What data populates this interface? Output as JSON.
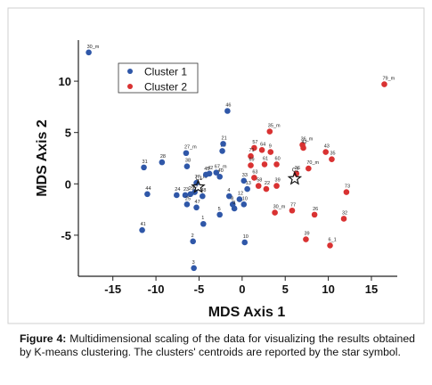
{
  "chart_data": {
    "type": "scatter",
    "xlabel": "MDS Axis 1",
    "ylabel": "MDS Axis 2",
    "xlim": [
      -19,
      18
    ],
    "ylim": [
      -9,
      14
    ],
    "x_ticks": [
      -15,
      -10,
      -5,
      0,
      5,
      10,
      15
    ],
    "y_ticks": [
      -5,
      0,
      5,
      10
    ],
    "x_tick_labels": [
      "-15",
      "-10",
      "-5",
      "0",
      "5",
      "10",
      "15"
    ],
    "y_tick_labels": [
      "-5",
      "0",
      "5",
      "10"
    ],
    "grid": false,
    "legend_position": "top-left",
    "series": [
      {
        "name": "Cluster 1",
        "color": "#2f57a8",
        "points": [
          {
            "x": -17.8,
            "y": 12.8,
            "label": "30_m"
          },
          {
            "x": -11.4,
            "y": 1.6,
            "label": "31"
          },
          {
            "x": -11.0,
            "y": -1.0,
            "label": "44"
          },
          {
            "x": -11.6,
            "y": -4.5,
            "label": "41"
          },
          {
            "x": -9.3,
            "y": 2.1,
            "label": "28"
          },
          {
            "x": -6.5,
            "y": 3.0,
            "label": "27_m"
          },
          {
            "x": -6.4,
            "y": 1.7,
            "label": "38"
          },
          {
            "x": -7.6,
            "y": -1.1,
            "label": "24"
          },
          {
            "x": -6.6,
            "y": -1.1,
            "label": "23"
          },
          {
            "x": -6.0,
            "y": -1.0,
            "label": "29"
          },
          {
            "x": -5.5,
            "y": -0.8,
            "label": "17"
          },
          {
            "x": -5.3,
            "y": 0.1,
            "label": "77_m"
          },
          {
            "x": -4.6,
            "y": -1.2,
            "label": "48"
          },
          {
            "x": -4.2,
            "y": 0.9,
            "label": "45"
          },
          {
            "x": -3.8,
            "y": 1.0,
            "label": "42"
          },
          {
            "x": -3.0,
            "y": 1.1,
            "label": "67_m"
          },
          {
            "x": -2.6,
            "y": 0.7,
            "label": "40"
          },
          {
            "x": -5.3,
            "y": -2.3,
            "label": "47"
          },
          {
            "x": -6.4,
            "y": -2.0,
            "label": "25"
          },
          {
            "x": -2.3,
            "y": 3.2,
            "label": "20"
          },
          {
            "x": -2.2,
            "y": 3.9,
            "label": "21"
          },
          {
            "x": -1.7,
            "y": 7.1,
            "label": "46"
          },
          {
            "x": -1.5,
            "y": -1.2,
            "label": "4"
          },
          {
            "x": -1.1,
            "y": -2.0,
            "label": "8"
          },
          {
            "x": -0.9,
            "y": -2.4,
            "label": "9"
          },
          {
            "x": -0.3,
            "y": -1.5,
            "label": "12"
          },
          {
            "x": 0.2,
            "y": -2.0,
            "label": "10"
          },
          {
            "x": 0.2,
            "y": 0.3,
            "label": "33"
          },
          {
            "x": 0.6,
            "y": -0.5,
            "label": "13"
          },
          {
            "x": 0.3,
            "y": -5.7,
            "label": "10"
          },
          {
            "x": -2.6,
            "y": -3.0,
            "label": "5"
          },
          {
            "x": -4.5,
            "y": -3.9,
            "label": "1"
          },
          {
            "x": -5.7,
            "y": -5.6,
            "label": "2"
          },
          {
            "x": -5.6,
            "y": -8.2,
            "label": "3"
          }
        ]
      },
      {
        "name": "Cluster 2",
        "color": "#d93232",
        "points": [
          {
            "x": 3.2,
            "y": 5.1,
            "label": "35_m"
          },
          {
            "x": 1.4,
            "y": 3.5,
            "label": "57"
          },
          {
            "x": 2.3,
            "y": 3.3,
            "label": "64"
          },
          {
            "x": 3.3,
            "y": 3.1,
            "label": "9"
          },
          {
            "x": 1.0,
            "y": 2.7,
            "label": "71"
          },
          {
            "x": 1.0,
            "y": 1.8,
            "label": "69"
          },
          {
            "x": 2.6,
            "y": 1.9,
            "label": "61"
          },
          {
            "x": 4.0,
            "y": 1.9,
            "label": "60"
          },
          {
            "x": 1.4,
            "y": 0.6,
            "label": "63"
          },
          {
            "x": 1.9,
            "y": -0.2,
            "label": "58"
          },
          {
            "x": 2.8,
            "y": -0.5,
            "label": "22"
          },
          {
            "x": 4.0,
            "y": -0.2,
            "label": "39"
          },
          {
            "x": 6.3,
            "y": 1.0,
            "label": "36"
          },
          {
            "x": 3.8,
            "y": -2.8,
            "label": "30_m"
          },
          {
            "x": 5.8,
            "y": -2.6,
            "label": "77"
          },
          {
            "x": 7.0,
            "y": 3.8,
            "label": "36_m"
          },
          {
            "x": 7.1,
            "y": 3.5,
            "label": "42"
          },
          {
            "x": 7.7,
            "y": 1.5,
            "label": "70_m"
          },
          {
            "x": 9.7,
            "y": 3.1,
            "label": "43"
          },
          {
            "x": 10.4,
            "y": 2.4,
            "label": "35"
          },
          {
            "x": 12.1,
            "y": -0.8,
            "label": "73"
          },
          {
            "x": 8.4,
            "y": -3.0,
            "label": "26"
          },
          {
            "x": 11.8,
            "y": -3.4,
            "label": "32"
          },
          {
            "x": 7.4,
            "y": -5.4,
            "label": "39"
          },
          {
            "x": 10.2,
            "y": -6.0,
            "label": "6_1"
          },
          {
            "x": 16.5,
            "y": 9.7,
            "label": "79_m"
          }
        ]
      }
    ],
    "centroids": [
      {
        "x": -5.1,
        "y": -0.3,
        "label": "C1"
      },
      {
        "x": 6.1,
        "y": 0.5,
        "label": "C2"
      }
    ]
  },
  "caption": {
    "label": "Figure 4:",
    "text": " Multidimensional scaling of the data for visualizing the results obtained by K-means clustering. The clusters' centroids are reported by the star symbol."
  },
  "colors": {
    "frame": "#cfcfcf",
    "axis": "#222222"
  }
}
